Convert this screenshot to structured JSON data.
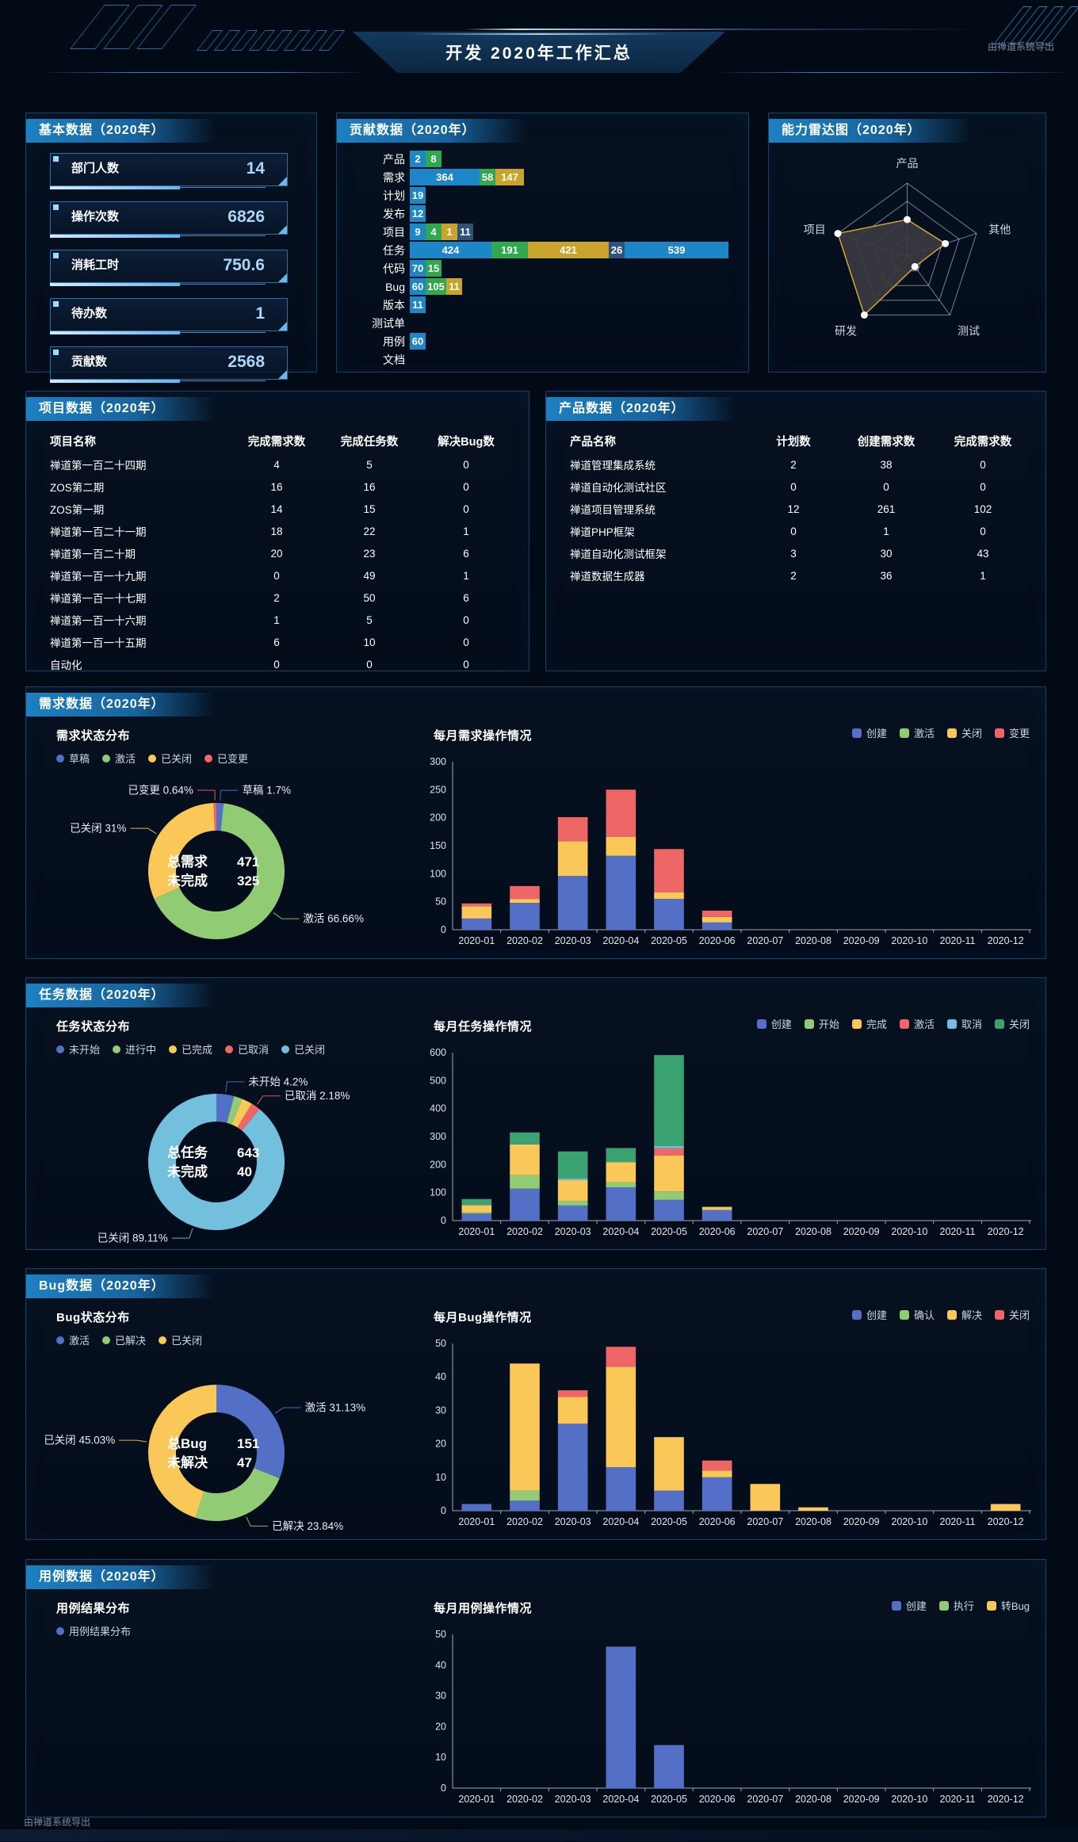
{
  "header": {
    "title": "开发 2020年工作汇总",
    "export_note": "由禅道系统导出"
  },
  "footer": {
    "export_note": "由禅道系统导出"
  },
  "panels": {
    "basic": {
      "title": "基本数据（2020年）",
      "items": [
        {
          "label": "部门人数",
          "value": "14"
        },
        {
          "label": "操作次数",
          "value": "6826"
        },
        {
          "label": "消耗工时",
          "value": "750.6"
        },
        {
          "label": "待办数",
          "value": "1"
        },
        {
          "label": "贡献数",
          "value": "2568"
        }
      ]
    },
    "story": {
      "title": "需求数据（2020年）"
    },
    "task": {
      "title": "任务数据（2020年）"
    },
    "bug": {
      "title": "Bug数据（2020年）"
    },
    "case": {
      "title": "用例数据（2020年）"
    }
  },
  "chart_data": [
    {
      "id": "contribution",
      "type": "bar",
      "orientation": "horizontal",
      "stacked": true,
      "title": "贡献数据（2020年）",
      "categories": [
        "产品",
        "需求",
        "计划",
        "发布",
        "项目",
        "任务",
        "代码",
        "Bug",
        "版本",
        "测试单",
        "用例",
        "文档"
      ],
      "values": [
        [
          2,
          8
        ],
        [
          364,
          58,
          147
        ],
        [
          19
        ],
        [
          12
        ],
        [
          9,
          4,
          1,
          11
        ],
        [
          424,
          191,
          421,
          26,
          539
        ],
        [
          70,
          15
        ],
        [
          60,
          105,
          11
        ],
        [
          11
        ],
        [],
        [
          60
        ],
        []
      ],
      "colors": [
        "#1c86c6",
        "#2fa84f",
        "#c9a42b",
        "#2f527a"
      ]
    },
    {
      "id": "radar",
      "type": "radar",
      "title": "能力雷达图（2020年）",
      "axes": [
        "产品",
        "其他",
        "测试",
        "研发",
        "项目"
      ],
      "values": [
        0.5,
        0.55,
        0.18,
        1.0,
        1.0
      ],
      "max": 1,
      "levels": 4,
      "colors": {
        "line": "#d6a62f",
        "fill": "rgba(58,58,64,0.92)",
        "dot": "#ffffff",
        "grid": "rgba(210,222,235,0.55)"
      }
    },
    {
      "id": "project_table",
      "type": "table",
      "title": "项目数据（2020年）",
      "headers": [
        "项目名称",
        "完成需求数",
        "完成任务数",
        "解决Bug数"
      ],
      "rows": [
        [
          "禅道第一百二十四期",
          "4",
          "5",
          "0"
        ],
        [
          "ZOS第二期",
          "16",
          "16",
          "0"
        ],
        [
          "ZOS第一期",
          "14",
          "15",
          "0"
        ],
        [
          "禅道第一百二十一期",
          "18",
          "22",
          "1"
        ],
        [
          "禅道第一百二十期",
          "20",
          "23",
          "6"
        ],
        [
          "禅道第一百一十九期",
          "0",
          "49",
          "1"
        ],
        [
          "禅道第一百一十七期",
          "2",
          "50",
          "6"
        ],
        [
          "禅道第一百一十六期",
          "1",
          "5",
          "0"
        ],
        [
          "禅道第一百一十五期",
          "6",
          "10",
          "0"
        ],
        [
          "自动化",
          "0",
          "0",
          "0"
        ]
      ]
    },
    {
      "id": "product_table",
      "type": "table",
      "title": "产品数据（2020年）",
      "headers": [
        "产品名称",
        "计划数",
        "创建需求数",
        "完成需求数"
      ],
      "rows": [
        [
          "禅道管理集成系统",
          "2",
          "38",
          "0"
        ],
        [
          "禅道自动化测试社区",
          "0",
          "0",
          "0"
        ],
        [
          "禅道项目管理系统",
          "12",
          "261",
          "102"
        ],
        [
          "禅道PHP框架",
          "0",
          "1",
          "0"
        ],
        [
          "禅道自动化测试框架",
          "3",
          "30",
          "43"
        ],
        [
          "禅道数据生成器",
          "2",
          "36",
          "1"
        ]
      ]
    },
    {
      "id": "story_status",
      "type": "pie",
      "title": "需求状态分布",
      "center": [
        [
          "总需求",
          "471"
        ],
        [
          "未完成",
          "325"
        ]
      ],
      "slices": [
        {
          "name": "草稿",
          "pct": 1.7,
          "color": "#5470c6",
          "callout": "草稿  1.7%"
        },
        {
          "name": "激活",
          "pct": 66.66,
          "color": "#91cc75",
          "callout": "激活  66.66%"
        },
        {
          "name": "已关闭",
          "pct": 31.0,
          "color": "#fac858",
          "callout": "已关闭  31%"
        },
        {
          "name": "已变更",
          "pct": 0.64,
          "color": "#ee6666",
          "callout": "已变更  0.64%"
        }
      ]
    },
    {
      "id": "story_monthly",
      "type": "bar",
      "stacked": true,
      "title": "每月需求操作情况",
      "categories": [
        "2020-01",
        "2020-02",
        "2020-03",
        "2020-04",
        "2020-05",
        "2020-06",
        "2020-07",
        "2020-08",
        "2020-09",
        "2020-10",
        "2020-11",
        "2020-12"
      ],
      "ylim": [
        0,
        300
      ],
      "yticks": [
        0,
        50,
        100,
        150,
        200,
        250,
        300
      ],
      "series": [
        {
          "name": "创建",
          "color": "#5470c6",
          "values": [
            20,
            48,
            96,
            132,
            55,
            13,
            0,
            0,
            0,
            0,
            0,
            0
          ]
        },
        {
          "name": "激活",
          "color": "#91cc75",
          "values": [
            0,
            0,
            0,
            0,
            0,
            0,
            0,
            0,
            0,
            0,
            0,
            0
          ]
        },
        {
          "name": "关闭",
          "color": "#fac858",
          "values": [
            22,
            7,
            62,
            34,
            12,
            10,
            0,
            0,
            0,
            0,
            0,
            0
          ]
        },
        {
          "name": "变更",
          "color": "#ee6666",
          "values": [
            5,
            23,
            43,
            84,
            77,
            11,
            0,
            0,
            0,
            0,
            0,
            0
          ]
        }
      ]
    },
    {
      "id": "task_status",
      "type": "pie",
      "title": "任务状态分布",
      "center": [
        [
          "总任务",
          "643"
        ],
        [
          "未完成",
          "40"
        ]
      ],
      "slices": [
        {
          "name": "未开始",
          "pct": 4.2,
          "color": "#5470c6",
          "callout": "未开始  4.2%"
        },
        {
          "name": "进行中",
          "pct": 2.0,
          "color": "#91cc75",
          "callout": null
        },
        {
          "name": "已完成",
          "pct": 2.51,
          "color": "#fac858",
          "callout": null
        },
        {
          "name": "已取消",
          "pct": 2.18,
          "color": "#ee6666",
          "callout": "已取消  2.18%"
        },
        {
          "name": "已关闭",
          "pct": 89.11,
          "color": "#73c0de",
          "callout": "已关闭  89.11%"
        }
      ]
    },
    {
      "id": "task_monthly",
      "type": "bar",
      "stacked": true,
      "title": "每月任务操作情况",
      "categories": [
        "2020-01",
        "2020-02",
        "2020-03",
        "2020-04",
        "2020-05",
        "2020-06",
        "2020-07",
        "2020-08",
        "2020-09",
        "2020-10",
        "2020-11",
        "2020-12"
      ],
      "ylim": [
        0,
        600
      ],
      "yticks": [
        0,
        100,
        200,
        300,
        400,
        500,
        600
      ],
      "series": [
        {
          "name": "创建",
          "color": "#5470c6",
          "values": [
            25,
            114,
            54,
            119,
            74,
            38,
            0,
            0,
            0,
            0,
            0,
            0
          ]
        },
        {
          "name": "开始",
          "color": "#91cc75",
          "values": [
            5,
            48,
            16,
            18,
            30,
            0,
            0,
            0,
            0,
            0,
            0,
            0
          ]
        },
        {
          "name": "完成",
          "color": "#fac858",
          "values": [
            25,
            110,
            75,
            72,
            129,
            10,
            0,
            0,
            0,
            0,
            0,
            0
          ]
        },
        {
          "name": "激活",
          "color": "#ee6666",
          "values": [
            0,
            0,
            0,
            0,
            25,
            0,
            0,
            0,
            0,
            0,
            0,
            0
          ]
        },
        {
          "name": "取消",
          "color": "#73c0de",
          "values": [
            0,
            0,
            5,
            0,
            8,
            0,
            0,
            0,
            0,
            0,
            0,
            0
          ]
        },
        {
          "name": "关闭",
          "color": "#3ba272",
          "values": [
            22,
            43,
            97,
            50,
            325,
            2,
            0,
            0,
            0,
            0,
            0,
            0
          ]
        }
      ]
    },
    {
      "id": "bug_status",
      "type": "pie",
      "title": "Bug状态分布",
      "center": [
        [
          "总Bug",
          "151"
        ],
        [
          "未解决",
          "47"
        ]
      ],
      "slices": [
        {
          "name": "激活",
          "pct": 31.13,
          "color": "#5470c6",
          "callout": "激活  31.13%"
        },
        {
          "name": "已解决",
          "pct": 23.84,
          "color": "#91cc75",
          "callout": "已解决  23.84%"
        },
        {
          "name": "已关闭",
          "pct": 45.03,
          "color": "#fac858",
          "callout": "已关闭  45.03%"
        }
      ]
    },
    {
      "id": "bug_monthly",
      "type": "bar",
      "stacked": true,
      "title": "每月Bug操作情况",
      "categories": [
        "2020-01",
        "2020-02",
        "2020-03",
        "2020-04",
        "2020-05",
        "2020-06",
        "2020-07",
        "2020-08",
        "2020-09",
        "2020-10",
        "2020-11",
        "2020-12"
      ],
      "ylim": [
        0,
        50
      ],
      "yticks": [
        0,
        10,
        20,
        30,
        40,
        50
      ],
      "series": [
        {
          "name": "创建",
          "color": "#5470c6",
          "values": [
            2,
            3,
            26,
            13,
            6,
            10,
            0,
            0,
            0,
            0,
            0,
            0
          ]
        },
        {
          "name": "确认",
          "color": "#91cc75",
          "values": [
            0,
            3,
            0,
            0,
            0,
            0,
            0,
            0,
            0,
            0,
            0,
            0
          ]
        },
        {
          "name": "解决",
          "color": "#fac858",
          "values": [
            0,
            38,
            8,
            30,
            16,
            2,
            8,
            1,
            0,
            0,
            0,
            2
          ]
        },
        {
          "name": "关闭",
          "color": "#ee6666",
          "values": [
            0,
            0,
            2,
            6,
            0,
            3,
            0,
            0,
            0,
            0,
            0,
            0
          ]
        }
      ]
    },
    {
      "id": "case_result",
      "type": "pie",
      "title": "用例结果分布",
      "center": [],
      "slices": [
        {
          "name": "用例结果分布",
          "color": "#5470c6",
          "callout": null
        }
      ]
    },
    {
      "id": "case_monthly",
      "type": "bar",
      "stacked": true,
      "title": "每月用例操作情况",
      "categories": [
        "2020-01",
        "2020-02",
        "2020-03",
        "2020-04",
        "2020-05",
        "2020-06",
        "2020-07",
        "2020-08",
        "2020-09",
        "2020-10",
        "2020-11",
        "2020-12"
      ],
      "ylim": [
        0,
        50
      ],
      "yticks": [
        0,
        10,
        20,
        30,
        40,
        50
      ],
      "series": [
        {
          "name": "创建",
          "color": "#5470c6",
          "values": [
            0,
            0,
            0,
            46,
            14,
            0,
            0,
            0,
            0,
            0,
            0,
            0
          ]
        },
        {
          "name": "执行",
          "color": "#91cc75",
          "values": [
            0,
            0,
            0,
            0,
            0,
            0,
            0,
            0,
            0,
            0,
            0,
            0
          ]
        },
        {
          "name": "转Bug",
          "color": "#fac858",
          "values": [
            0,
            0,
            0,
            0,
            0,
            0,
            0,
            0,
            0,
            0,
            0,
            0
          ]
        }
      ]
    }
  ]
}
